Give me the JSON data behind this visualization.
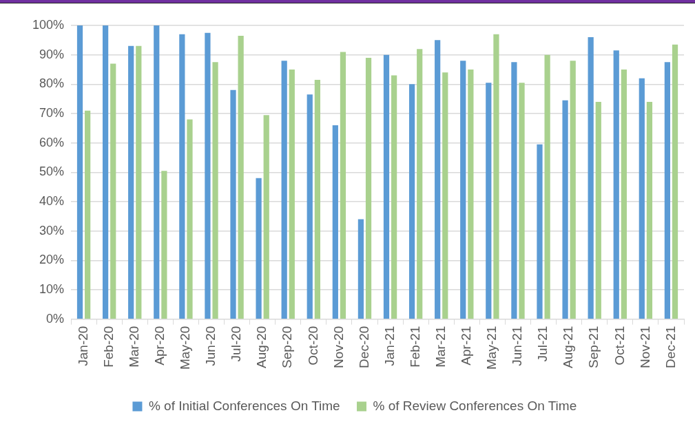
{
  "chart_data": {
    "type": "bar",
    "categories": [
      "Jan-20",
      "Feb-20",
      "Mar-20",
      "Apr-20",
      "May-20",
      "Jun-20",
      "Jul-20",
      "Aug-20",
      "Sep-20",
      "Oct-20",
      "Nov-20",
      "Dec-20",
      "Jan-21",
      "Feb-21",
      "Mar-21",
      "Apr-21",
      "May-21",
      "Jun-21",
      "Jul-21",
      "Aug-21",
      "Sep-21",
      "Oct-21",
      "Nov-21",
      "Dec-21"
    ],
    "series": [
      {
        "name": "% of Initial Conferences On Time",
        "color": "#5b9bd5",
        "values": [
          100,
          100,
          93,
          100,
          97,
          97.5,
          78,
          48,
          88,
          76.5,
          66,
          34,
          90,
          80,
          95,
          88,
          80.5,
          87.5,
          59.5,
          74.5,
          96,
          91.5,
          82,
          87.5
        ]
      },
      {
        "name": "% of Review Conferences On Time",
        "color": "#a9d18e",
        "values": [
          71,
          87,
          93,
          50.5,
          68,
          87.5,
          96.5,
          69.5,
          85,
          81.5,
          91,
          89,
          83,
          92,
          84,
          85,
          97,
          80.5,
          90,
          88,
          74,
          85,
          74,
          93.5
        ]
      }
    ],
    "ylim": [
      0,
      100
    ],
    "yticks": [
      {
        "value": 0,
        "label": "0%"
      },
      {
        "value": 10,
        "label": "10%"
      },
      {
        "value": 20,
        "label": "20%"
      },
      {
        "value": 30,
        "label": "30%"
      },
      {
        "value": 40,
        "label": "40%"
      },
      {
        "value": 50,
        "label": "50%"
      },
      {
        "value": 60,
        "label": "60%"
      },
      {
        "value": 70,
        "label": "70%"
      },
      {
        "value": 80,
        "label": "80%"
      },
      {
        "value": 90,
        "label": "90%"
      },
      {
        "value": 100,
        "label": "100%"
      }
    ],
    "grid": "y",
    "legend": "bottom"
  }
}
